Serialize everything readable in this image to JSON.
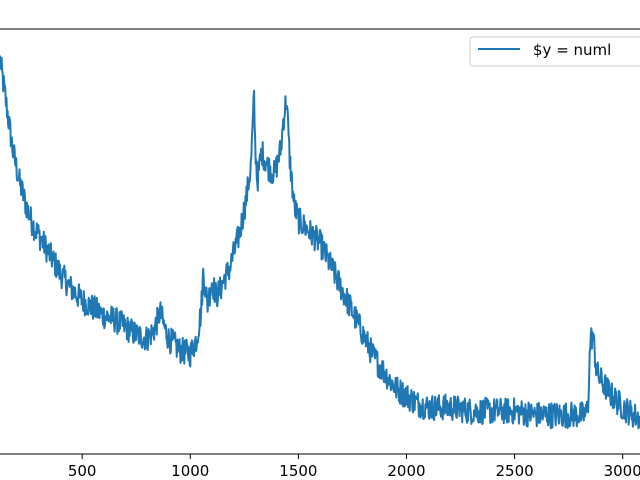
{
  "chart_data": {
    "type": "line",
    "title": "",
    "xlabel": "",
    "ylabel": "",
    "xlim": [
      120,
      3080
    ],
    "ylim": [
      0,
      1
    ],
    "grid": false,
    "legend_position": "top-right",
    "x_ticks": [
      {
        "value": 500,
        "label": "500"
      },
      {
        "value": 1000,
        "label": "1000"
      },
      {
        "value": 1500,
        "label": "1500"
      },
      {
        "value": 2000,
        "label": "2000"
      },
      {
        "value": 2500,
        "label": "2500"
      },
      {
        "value": 3000,
        "label": "3000"
      }
    ],
    "series": [
      {
        "name": "$y = numl",
        "color": "#1f77b4",
        "noise_amplitude": 0.035,
        "x": [
          120,
          150,
          180,
          210,
          240,
          270,
          300,
          350,
          400,
          450,
          500,
          550,
          600,
          650,
          700,
          750,
          800,
          830,
          850,
          860,
          880,
          900,
          950,
          1000,
          1030,
          1050,
          1060,
          1080,
          1100,
          1120,
          1140,
          1160,
          1180,
          1200,
          1230,
          1260,
          1280,
          1295,
          1300,
          1310,
          1330,
          1360,
          1390,
          1420,
          1430,
          1445,
          1460,
          1480,
          1500,
          1550,
          1600,
          1650,
          1700,
          1750,
          1800,
          1850,
          1900,
          1950,
          2000,
          2050,
          2100,
          2200,
          2300,
          2400,
          2500,
          2600,
          2700,
          2800,
          2830,
          2840,
          2850,
          2860,
          2870,
          2880,
          2900,
          2950,
          3000,
          3050,
          3080
        ],
        "y": [
          0.98,
          0.86,
          0.74,
          0.66,
          0.6,
          0.55,
          0.52,
          0.47,
          0.42,
          0.38,
          0.35,
          0.33,
          0.31,
          0.3,
          0.28,
          0.26,
          0.25,
          0.27,
          0.3,
          0.32,
          0.28,
          0.25,
          0.22,
          0.21,
          0.25,
          0.32,
          0.42,
          0.34,
          0.4,
          0.36,
          0.38,
          0.41,
          0.43,
          0.47,
          0.53,
          0.62,
          0.7,
          0.88,
          0.76,
          0.66,
          0.74,
          0.7,
          0.68,
          0.75,
          0.82,
          0.88,
          0.72,
          0.6,
          0.56,
          0.53,
          0.5,
          0.44,
          0.38,
          0.32,
          0.26,
          0.2,
          0.16,
          0.12,
          0.1,
          0.08,
          0.07,
          0.07,
          0.06,
          0.06,
          0.06,
          0.05,
          0.05,
          0.05,
          0.05,
          0.08,
          0.24,
          0.26,
          0.22,
          0.16,
          0.14,
          0.1,
          0.07,
          0.05,
          0.04
        ]
      }
    ]
  }
}
